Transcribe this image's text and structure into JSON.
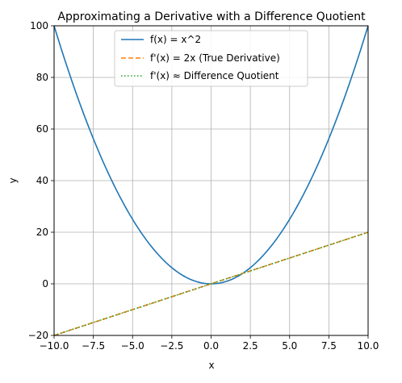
{
  "chart_data": {
    "type": "line",
    "title": "Approximating a Derivative with a Difference Quotient",
    "xlabel": "x",
    "ylabel": "y",
    "xlim": [
      -10,
      10
    ],
    "ylim": [
      -20,
      100
    ],
    "xticks": [
      -10.0,
      -7.5,
      -5.0,
      -2.5,
      0.0,
      2.5,
      5.0,
      7.5,
      10.0
    ],
    "xtick_labels": [
      "−10.0",
      "−7.5",
      "−5.0",
      "−2.5",
      "0.0",
      "2.5",
      "5.0",
      "7.5",
      "10.0"
    ],
    "yticks": [
      -20,
      0,
      20,
      40,
      60,
      80,
      100
    ],
    "ytick_labels": [
      "−20",
      "0",
      "20",
      "40",
      "60",
      "80",
      "100"
    ],
    "grid": true,
    "legend_position": "top-center",
    "series": [
      {
        "name": "f(x) = x^2",
        "style": "solid",
        "color": "#1f77b4",
        "x": [
          -10,
          -9,
          -8,
          -7,
          -6,
          -5,
          -4,
          -3,
          -2,
          -1,
          0,
          1,
          2,
          3,
          4,
          5,
          6,
          7,
          8,
          9,
          10
        ],
        "values": [
          100,
          81,
          64,
          49,
          36,
          25,
          16,
          9,
          4,
          1,
          0,
          1,
          4,
          9,
          16,
          25,
          36,
          49,
          64,
          81,
          100
        ]
      },
      {
        "name": "f'(x) = 2x (True Derivative)",
        "style": "dashed",
        "color": "#ff7f0e",
        "x": [
          -10,
          -5,
          0,
          5,
          10
        ],
        "values": [
          -20,
          -10,
          0,
          10,
          20
        ]
      },
      {
        "name": "f'(x) ≈ Difference Quotient",
        "style": "dotted",
        "color": "#2ca02c",
        "x": [
          -10,
          -5,
          0,
          5,
          10
        ],
        "values": [
          -20,
          -10,
          0,
          10,
          20
        ]
      }
    ]
  }
}
